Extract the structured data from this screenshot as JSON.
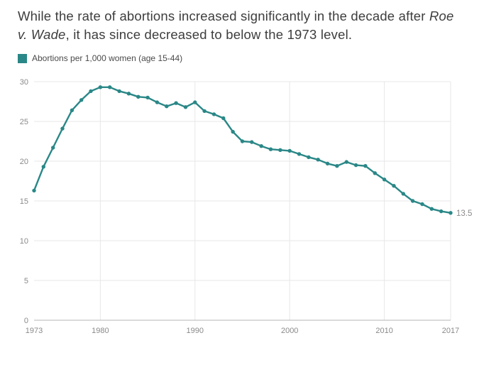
{
  "title": {
    "part1": "While the rate of abortions increased significantly in the decade after ",
    "italic": "Roe v. Wade",
    "part2": ", it has since decreased to below the 1973 level."
  },
  "legend": {
    "label": "Abortions per 1,000 women (age 15-44)",
    "color": "#2a8787"
  },
  "chart_data": {
    "type": "line",
    "title": "Abortions per 1,000 women (age 15-44), 1973-2017",
    "line_color": "#2a8787",
    "x": [
      1973,
      1974,
      1975,
      1976,
      1977,
      1978,
      1979,
      1980,
      1981,
      1982,
      1983,
      1984,
      1985,
      1986,
      1987,
      1988,
      1989,
      1990,
      1991,
      1992,
      1993,
      1994,
      1995,
      1996,
      1997,
      1998,
      1999,
      2000,
      2001,
      2002,
      2003,
      2004,
      2005,
      2006,
      2007,
      2008,
      2009,
      2010,
      2011,
      2012,
      2013,
      2014,
      2015,
      2016,
      2017
    ],
    "values": [
      16.3,
      19.3,
      21.7,
      24.1,
      26.4,
      27.7,
      28.8,
      29.3,
      29.3,
      28.8,
      28.5,
      28.1,
      28.0,
      27.4,
      26.9,
      27.3,
      26.8,
      27.4,
      26.3,
      25.9,
      25.4,
      23.7,
      22.5,
      22.4,
      21.9,
      21.5,
      21.4,
      21.3,
      20.9,
      20.5,
      20.2,
      19.7,
      19.4,
      19.9,
      19.5,
      19.4,
      18.5,
      17.7,
      16.9,
      15.9,
      15.0,
      14.6,
      14.0,
      13.7,
      13.5
    ],
    "end_label": "13.5",
    "xlabel": "",
    "ylabel": "",
    "ylim": [
      0,
      30
    ],
    "yticks": [
      0,
      5,
      10,
      15,
      20,
      25,
      30
    ],
    "xticks": [
      1973,
      1980,
      1990,
      2000,
      2010,
      2017
    ],
    "grid": "on",
    "legend_position": "top-left"
  }
}
